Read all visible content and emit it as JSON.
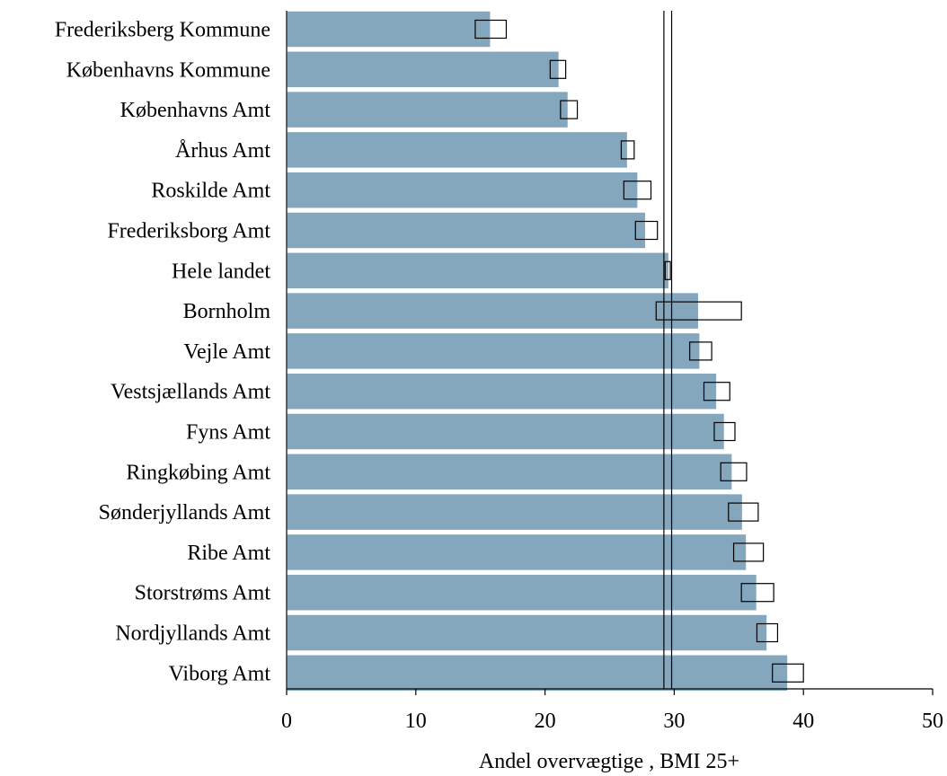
{
  "chart_data": {
    "type": "bar",
    "orientation": "horizontal",
    "title": "",
    "xlabel": "Andel overvægtige , BMI 25+",
    "ylabel": "",
    "xlim": [
      0,
      50
    ],
    "xticks": [
      "0",
      "10",
      "20",
      "30",
      "40",
      "50"
    ],
    "grid": false,
    "legend": "none",
    "bar_color": "#84a7bd",
    "categories": [
      "Frederiksberg Kommune",
      "Københavns Kommune",
      "Københavns Amt",
      "Århus Amt",
      "Roskilde Amt",
      "Frederiksborg Amt",
      "Hele landet",
      "Bornholm",
      "Vejle Amt",
      "Vestsjællands Amt",
      "Fyns Amt",
      "Ringkøbing Amt",
      "Sønderjyllands Amt",
      "Ribe Amt",
      "Storstrøms Amt",
      "Nordjyllands Amt",
      "Viborg Amt"
    ],
    "values": [
      15.8,
      21.1,
      21.8,
      26.4,
      27.2,
      27.8,
      29.6,
      31.9,
      32.0,
      33.3,
      33.9,
      34.5,
      35.3,
      35.6,
      36.4,
      37.2,
      38.8
    ],
    "intervals": [
      [
        14.6,
        17.0
      ],
      [
        20.4,
        21.6
      ],
      [
        21.2,
        22.5
      ],
      [
        25.9,
        26.9
      ],
      [
        26.1,
        28.2
      ],
      [
        27.0,
        28.7
      ],
      [
        29.3,
        29.7
      ],
      [
        28.6,
        35.2
      ],
      [
        31.2,
        32.9
      ],
      [
        32.3,
        34.3
      ],
      [
        33.1,
        34.7
      ],
      [
        33.6,
        35.6
      ],
      [
        34.2,
        36.5
      ],
      [
        34.6,
        36.9
      ],
      [
        35.2,
        37.7
      ],
      [
        36.4,
        38.0
      ],
      [
        37.6,
        40.0
      ]
    ],
    "reference_lines": [
      29.2,
      29.8
    ]
  }
}
